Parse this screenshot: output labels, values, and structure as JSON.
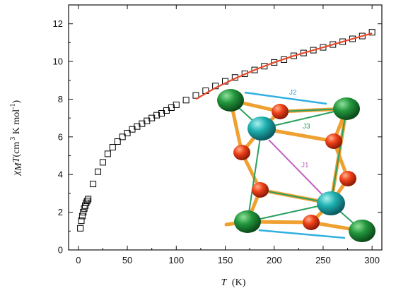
{
  "chart_data": {
    "type": "scatter",
    "title": "",
    "xlabel": "T (K)",
    "xlabel_symbol": "T",
    "xlabel_unit": "(K)",
    "ylabel": "χMT (cm3 K mol-1)",
    "ylabel_symbol": "χ",
    "ylabel_sub": "M",
    "ylabel_T": "T",
    "ylabel_unit_open": "(cm",
    "ylabel_unit_sup": "3",
    "ylabel_unit_mid": " K mol",
    "ylabel_unit_sup2": "-1",
    "ylabel_unit_close": ")",
    "xlim": [
      -10,
      310
    ],
    "ylim": [
      0,
      13
    ],
    "xticks": [
      0,
      50,
      100,
      150,
      200,
      250,
      300
    ],
    "yticks": [
      0,
      2,
      4,
      6,
      8,
      10,
      12
    ],
    "grid": false,
    "series": [
      {
        "marker": "open-square",
        "color": "#000000",
        "x": [
          2,
          3,
          4,
          5,
          6,
          7,
          8,
          9,
          10,
          15,
          20,
          25,
          30,
          35,
          40,
          45,
          50,
          55,
          60,
          65,
          70,
          75,
          80,
          85,
          90,
          95,
          100,
          110,
          120,
          130,
          140,
          150,
          160,
          170,
          180,
          190,
          200,
          210,
          220,
          230,
          240,
          250,
          260,
          270,
          280,
          290,
          300
        ],
        "y": [
          1.15,
          1.55,
          1.8,
          2.0,
          2.2,
          2.35,
          2.5,
          2.6,
          2.7,
          3.5,
          4.15,
          4.65,
          5.1,
          5.45,
          5.75,
          6.0,
          6.2,
          6.4,
          6.55,
          6.7,
          6.85,
          7.0,
          7.15,
          7.25,
          7.4,
          7.55,
          7.7,
          7.95,
          8.2,
          8.45,
          8.7,
          8.95,
          9.15,
          9.35,
          9.55,
          9.75,
          9.95,
          10.1,
          10.3,
          10.45,
          10.6,
          10.75,
          10.9,
          11.05,
          11.2,
          11.35,
          11.55
        ]
      },
      {
        "type": "line",
        "color": "#e8492a",
        "x": [
          120,
          140,
          160,
          180,
          200,
          220,
          240,
          260,
          280,
          300
        ],
        "y": [
          8.0,
          8.6,
          9.1,
          9.55,
          9.95,
          10.3,
          10.6,
          10.9,
          11.2,
          11.5
        ]
      }
    ],
    "inset": {
      "labels": [
        "J2",
        "J3",
        "J1"
      ],
      "colors": {
        "green_atom": "#1e8a35",
        "teal_atom": "#1fb3b3",
        "red_atom": "#e8401c",
        "bond_orange": "#f0a030",
        "bond_green": "#2aa060",
        "j1_line": "#c060c0",
        "j2_line": "#30b0e0"
      }
    }
  }
}
